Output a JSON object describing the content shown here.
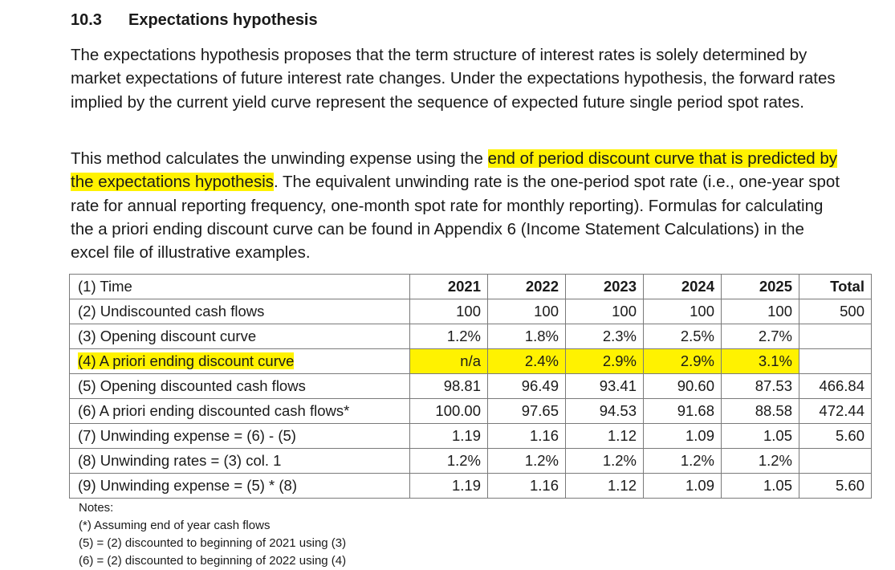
{
  "section": {
    "number": "10.3",
    "title": "Expectations hypothesis"
  },
  "paragraph1": "The expectations hypothesis proposes that the term structure of interest rates is solely determined by market expectations of future interest rate changes. Under the expectations hypothesis, the forward rates implied by the current yield curve represent the sequence of expected future single period spot rates.",
  "paragraph2": {
    "before": "This method calculates the unwinding expense using the ",
    "highlight": "end of period discount curve that is predicted by the expectations hypothesis",
    "after": ". The equivalent unwinding rate is the one-period spot rate (i.e., one-year spot rate for annual reporting frequency, one-month spot rate for monthly reporting). Formulas for calculating the a priori ending discount curve can be found in Appendix 6 (Income Statement Calculations) in the excel file of illustrative examples."
  },
  "table": {
    "header": {
      "label": "(1) Time",
      "cols": [
        "2021",
        "2022",
        "2023",
        "2024",
        "2025"
      ],
      "total": "Total"
    },
    "rows": [
      {
        "label": "(2) Undiscounted cash flows",
        "values": [
          "100",
          "100",
          "100",
          "100",
          "100"
        ],
        "total": "500"
      },
      {
        "label": "(3) Opening discount curve",
        "values": [
          "1.2%",
          "1.8%",
          "2.3%",
          "2.5%",
          "2.7%"
        ],
        "total": ""
      },
      {
        "label": "(4) A priori ending discount curve",
        "values": [
          "n/a",
          "2.4%",
          "2.9%",
          "2.9%",
          "3.1%"
        ],
        "total": ""
      },
      {
        "label": "(5) Opening discounted cash flows",
        "values": [
          "98.81",
          "96.49",
          "93.41",
          "90.60",
          "87.53"
        ],
        "total": "466.84"
      },
      {
        "label": "(6) A priori ending discounted cash flows*",
        "values": [
          "100.00",
          "97.65",
          "94.53",
          "91.68",
          "88.58"
        ],
        "total": "472.44"
      },
      {
        "label": "(7) Unwinding expense = (6) - (5)",
        "values": [
          "1.19",
          "1.16",
          "1.12",
          "1.09",
          "1.05"
        ],
        "total": "5.60"
      },
      {
        "label": "(8) Unwinding rates = (3) col. 1",
        "values": [
          "1.2%",
          "1.2%",
          "1.2%",
          "1.2%",
          "1.2%"
        ],
        "total": ""
      },
      {
        "label": "(9) Unwinding expense = (5) * (8)",
        "values": [
          "1.19",
          "1.16",
          "1.12",
          "1.09",
          "1.05"
        ],
        "total": "5.60"
      }
    ]
  },
  "notes": {
    "title": "Notes:",
    "lines": [
      "(*) Assuming end of year cash flows",
      "(5) = (2) discounted to beginning of 2021 using (3)",
      "(6) = (2) discounted to beginning of 2022 using (4)"
    ]
  },
  "colors": {
    "highlight": "#fff200"
  }
}
